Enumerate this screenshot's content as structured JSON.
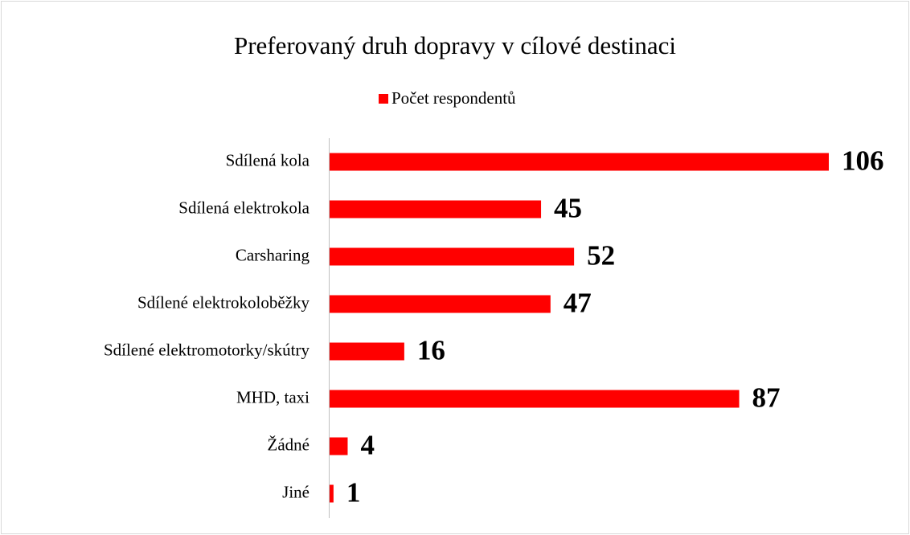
{
  "chart_data": {
    "type": "bar",
    "orientation": "horizontal",
    "title": "Preferovaný druh dopravy v cílové destinaci",
    "categories": [
      "Sdílená kola",
      "Sdílená elektrokola",
      "Carsharing",
      "Sdílené elektrokoloběžky",
      "Sdílené elektromotorky/skútry",
      "MHD, taxi",
      "Žádné",
      "Jiné"
    ],
    "series": [
      {
        "name": "Počet respondentů",
        "color": "#ff0000",
        "values": [
          106,
          45,
          52,
          47,
          16,
          87,
          4,
          1
        ]
      }
    ],
    "legend": "top"
  }
}
